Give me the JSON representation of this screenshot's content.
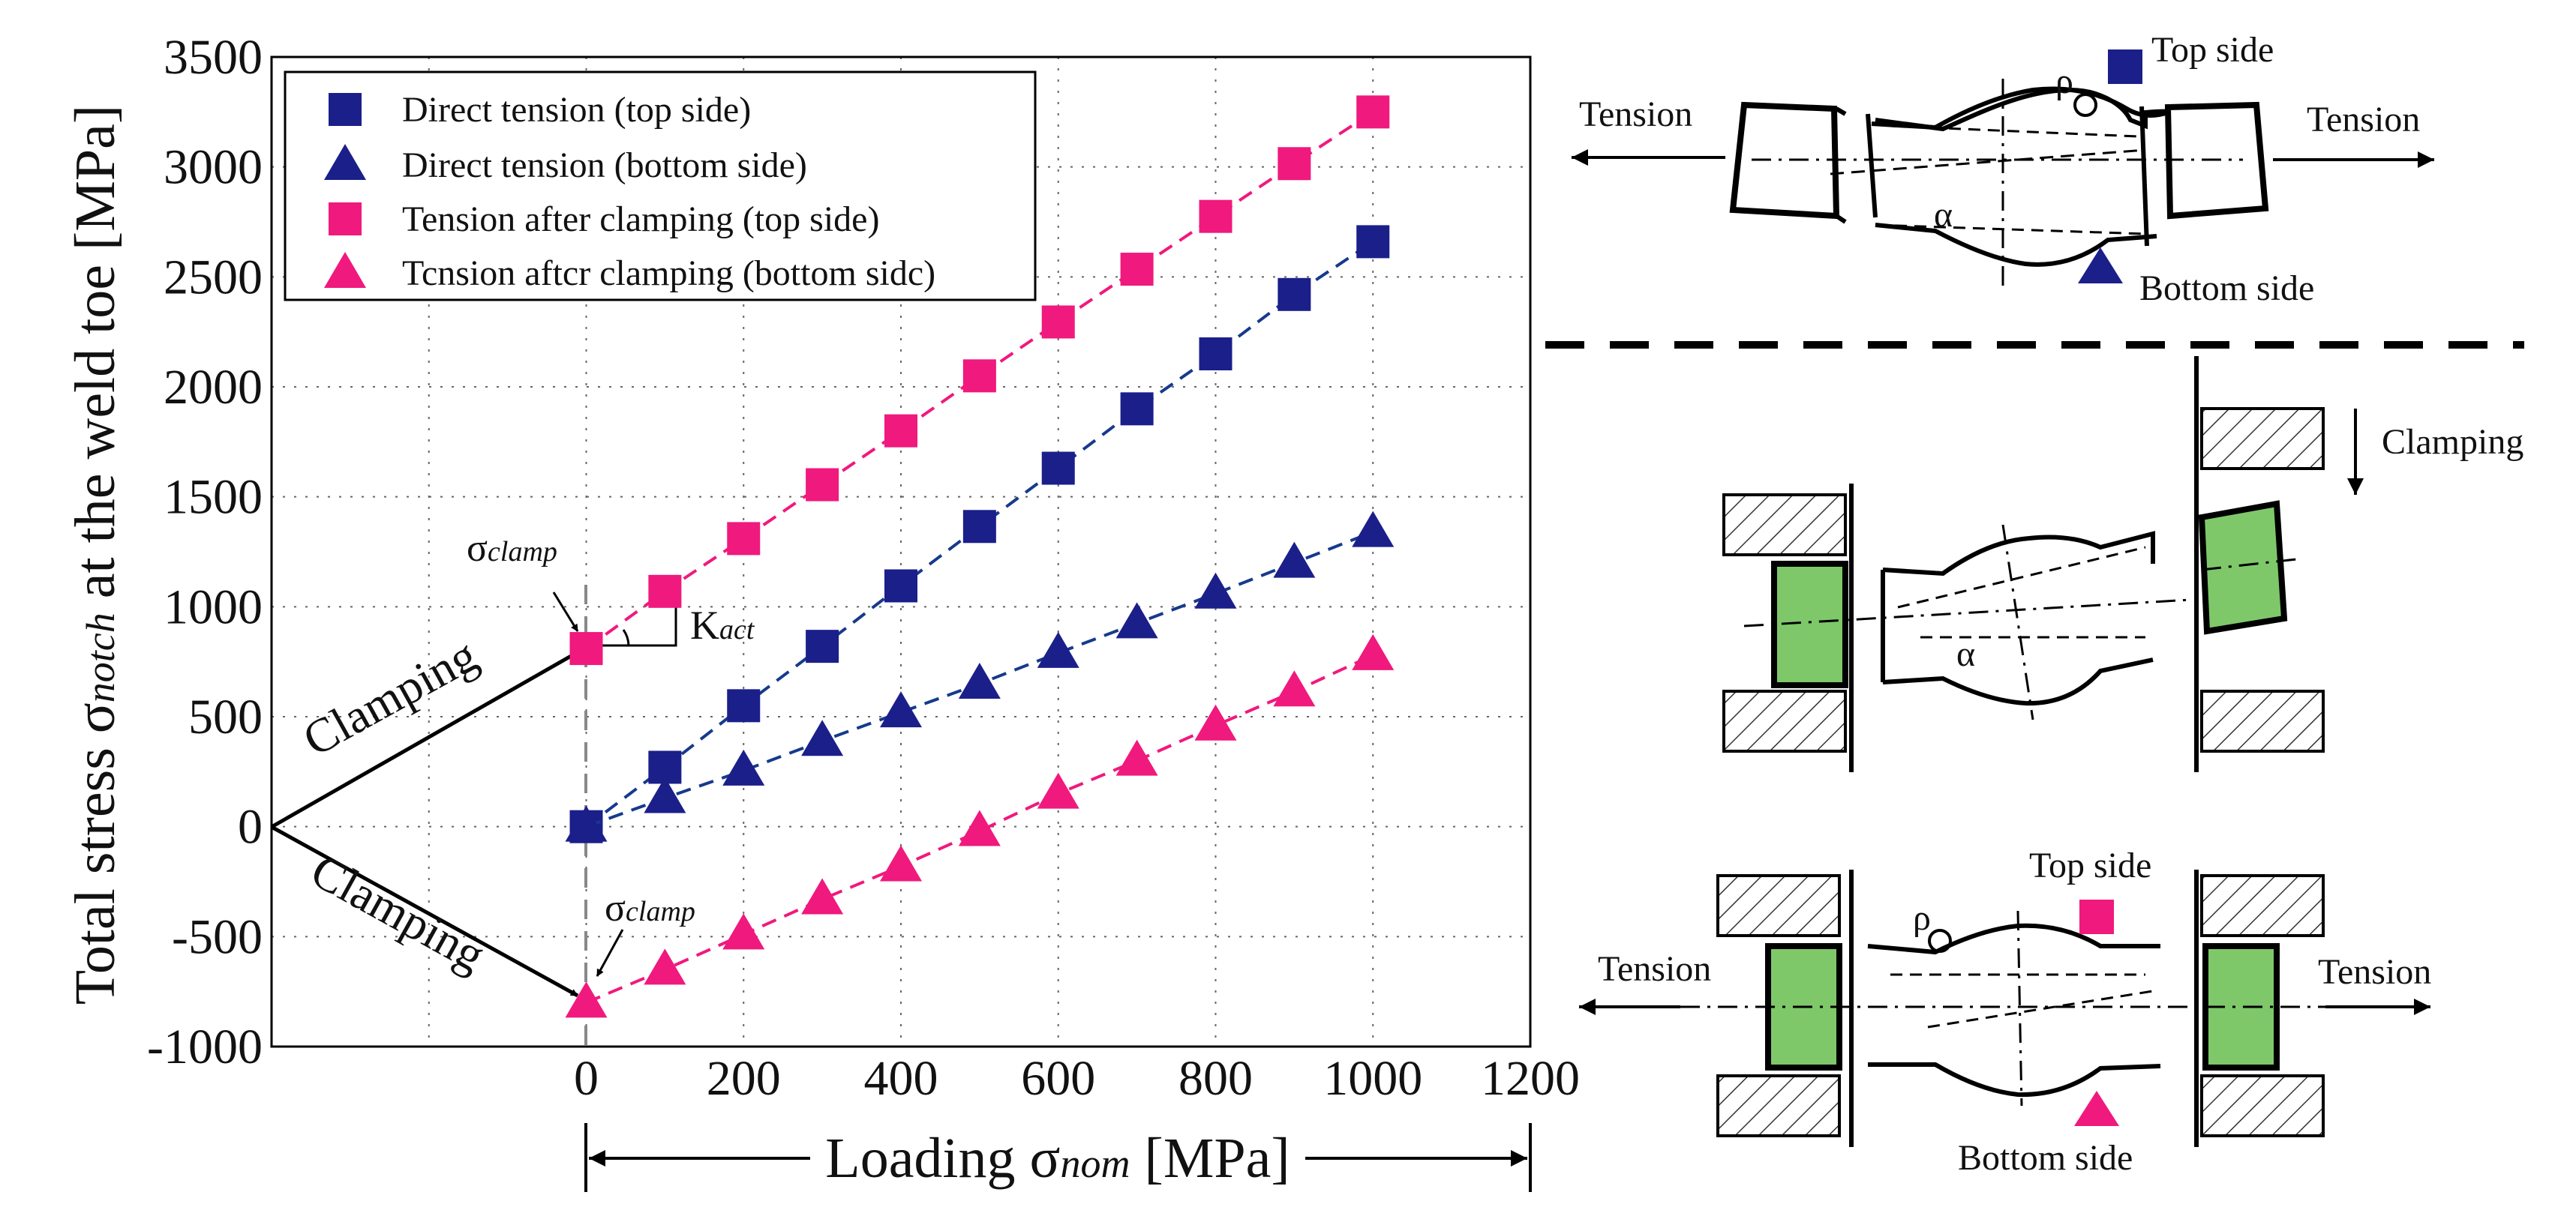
{
  "chart_data": {
    "type": "scatter",
    "title": "",
    "ylabel_prefix": "Total stress σ",
    "ylabel_sub": "notch",
    "ylabel_suffix": " at the weld toe [MPa]",
    "xlabel_prefix": "Loading σ",
    "xlabel_sub": "nom",
    "xlabel_suffix": " [MPa]",
    "xlim": [
      -400,
      1200
    ],
    "ylim": [
      -1000,
      3500
    ],
    "xticks": [
      0,
      200,
      400,
      600,
      800,
      1000,
      1200
    ],
    "yticks": [
      -1000,
      -500,
      0,
      500,
      1000,
      1500,
      2000,
      2500,
      3000,
      3500
    ],
    "grid": "dotted",
    "legend_position": "top-left",
    "series": [
      {
        "name": "Direct tension (top side)",
        "marker": "square",
        "color": "#1b1f8a",
        "line_color": "#163a8c",
        "x": [
          0,
          100,
          200,
          300,
          400,
          500,
          600,
          700,
          800,
          900,
          1000
        ],
        "y": [
          0,
          270,
          550,
          820,
          1095,
          1365,
          1630,
          1900,
          2150,
          2420,
          2660
        ]
      },
      {
        "name": "Direct tension (bottom side)",
        "marker": "triangle",
        "color": "#1b1f8a",
        "line_color": "#163a8c",
        "x": [
          0,
          100,
          200,
          300,
          400,
          500,
          600,
          700,
          800,
          900,
          1000
        ],
        "y": [
          0,
          130,
          255,
          390,
          520,
          650,
          790,
          925,
          1060,
          1200,
          1340
        ]
      },
      {
        "name": "Tension after clamping (top side)",
        "marker": "square",
        "color": "#f0197d",
        "line_color": "#f0197d",
        "x": [
          0,
          100,
          200,
          300,
          400,
          500,
          600,
          700,
          800,
          900,
          1000
        ],
        "y": [
          810,
          1070,
          1310,
          1555,
          1800,
          2050,
          2295,
          2535,
          2775,
          3015,
          3250
        ]
      },
      {
        "name": "Tcnsion aftcr clamping (bottom sidc)",
        "marker": "triangle",
        "color": "#f0197d",
        "line_color": "#f0197d",
        "x": [
          0,
          100,
          200,
          300,
          400,
          500,
          600,
          700,
          800,
          900,
          1000
        ],
        "y": [
          -800,
          -650,
          -490,
          -330,
          -180,
          -20,
          150,
          300,
          460,
          615,
          780
        ]
      }
    ],
    "annotations": {
      "clamping_top": "Clamping",
      "clamping_bottom": "Clamping",
      "sigma": "σ",
      "clamp_sub": "clamp",
      "kact_K": "K",
      "kact_sub": "act"
    }
  },
  "diagram": {
    "top_panel": {
      "tension_left": "Tension",
      "tension_right": "Tension",
      "top_side": "Top side",
      "bottom_side": "Bottom side",
      "rho": "ρ",
      "alpha": "α"
    },
    "middle_panel": {
      "clamping": "Clamping",
      "alpha": "α"
    },
    "bottom_panel": {
      "tension_left": "Tension",
      "tension_right": "Tension",
      "top_side": "Top side",
      "bottom_side": "Bottom side",
      "rho": "ρ"
    },
    "colors": {
      "navy": "#1b1f8a",
      "magenta": "#f0197d",
      "green": "#7ec86a"
    }
  }
}
